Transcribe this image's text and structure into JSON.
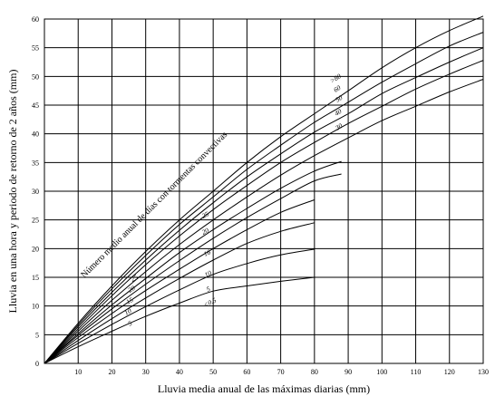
{
  "chart_data": {
    "type": "line",
    "xlabel": "Lluvia media anual de las máximas diarias (mm)",
    "ylabel": "Lluvia en una hora y periodo de retorno de 2 años (mm)",
    "annotation": "Número medio anual de días con tormentas convectivas",
    "xlim": [
      0,
      130
    ],
    "ylim": [
      0,
      60
    ],
    "x_ticks": [
      "10",
      "20",
      "30",
      "40",
      "50",
      "60",
      "70",
      "80",
      "90",
      "100",
      "110",
      "120",
      "130"
    ],
    "y_ticks": [
      "0",
      "5",
      "10",
      "15",
      "20",
      "25",
      "30",
      "35",
      "40",
      "45",
      "50",
      "55",
      "60"
    ],
    "grid": true,
    "series": [
      {
        "name": ">80",
        "points": [
          [
            0,
            0
          ],
          [
            10,
            7
          ],
          [
            20,
            13.5
          ],
          [
            30,
            19.5
          ],
          [
            40,
            25
          ],
          [
            50,
            30
          ],
          [
            60,
            35
          ],
          [
            70,
            39.5
          ],
          [
            80,
            43.5
          ],
          [
            90,
            47.5
          ],
          [
            100,
            51.5
          ],
          [
            110,
            55
          ],
          [
            120,
            58
          ],
          [
            130,
            60.5
          ]
        ]
      },
      {
        "name": "60",
        "points": [
          [
            0,
            0
          ],
          [
            10,
            6.7
          ],
          [
            20,
            13
          ],
          [
            30,
            18.8
          ],
          [
            40,
            24.2
          ],
          [
            50,
            29
          ],
          [
            60,
            33.8
          ],
          [
            70,
            38
          ],
          [
            80,
            42
          ],
          [
            90,
            45.5
          ],
          [
            100,
            49
          ],
          [
            110,
            52.2
          ],
          [
            120,
            55.3
          ],
          [
            130,
            57.7
          ]
        ]
      },
      {
        "name": "50",
        "points": [
          [
            0,
            0
          ],
          [
            10,
            6.4
          ],
          [
            20,
            12.4
          ],
          [
            30,
            18
          ],
          [
            40,
            23.2
          ],
          [
            50,
            28
          ],
          [
            60,
            32.5
          ],
          [
            70,
            36.5
          ],
          [
            80,
            40.3
          ],
          [
            90,
            43.5
          ],
          [
            100,
            47
          ],
          [
            110,
            49.8
          ],
          [
            120,
            52.5
          ],
          [
            130,
            55
          ]
        ]
      },
      {
        "name": "40",
        "points": [
          [
            0,
            0
          ],
          [
            10,
            6
          ],
          [
            20,
            11.8
          ],
          [
            30,
            17.2
          ],
          [
            40,
            22.2
          ],
          [
            50,
            26.8
          ],
          [
            60,
            31
          ],
          [
            70,
            35
          ],
          [
            80,
            38.5
          ],
          [
            90,
            41.8
          ],
          [
            100,
            44.8
          ],
          [
            110,
            47.8
          ],
          [
            120,
            50.4
          ],
          [
            130,
            52.8
          ]
        ]
      },
      {
        "name": "30",
        "points": [
          [
            0,
            0
          ],
          [
            10,
            5.6
          ],
          [
            20,
            11
          ],
          [
            30,
            16
          ],
          [
            40,
            20.7
          ],
          [
            50,
            25
          ],
          [
            60,
            29
          ],
          [
            70,
            32.8
          ],
          [
            80,
            36.2
          ],
          [
            90,
            39.3
          ],
          [
            100,
            42.3
          ],
          [
            110,
            44.8
          ],
          [
            120,
            47.3
          ],
          [
            130,
            49.5
          ]
        ]
      },
      {
        "name": "25",
        "points": [
          [
            0,
            0
          ],
          [
            10,
            5.2
          ],
          [
            20,
            10.2
          ],
          [
            30,
            14.8
          ],
          [
            40,
            19.3
          ],
          [
            50,
            23.3
          ],
          [
            60,
            27
          ],
          [
            70,
            30.5
          ],
          [
            80,
            33.5
          ],
          [
            88,
            35.2
          ]
        ]
      },
      {
        "name": "20",
        "points": [
          [
            0,
            0
          ],
          [
            10,
            4.9
          ],
          [
            20,
            9.5
          ],
          [
            30,
            13.8
          ],
          [
            40,
            17.9
          ],
          [
            50,
            21.8
          ],
          [
            60,
            25.4
          ],
          [
            70,
            28.7
          ],
          [
            80,
            31.8
          ],
          [
            88,
            33
          ]
        ]
      },
      {
        "name": "16",
        "points": [
          [
            0,
            0
          ],
          [
            10,
            4.5
          ],
          [
            20,
            8.7
          ],
          [
            30,
            12.7
          ],
          [
            40,
            16.4
          ],
          [
            50,
            20
          ],
          [
            60,
            23.3
          ],
          [
            70,
            26.3
          ],
          [
            80,
            28.5
          ]
        ]
      },
      {
        "name": "10",
        "points": [
          [
            0,
            0
          ],
          [
            10,
            4
          ],
          [
            20,
            7.8
          ],
          [
            30,
            11.4
          ],
          [
            40,
            14.8
          ],
          [
            50,
            18
          ],
          [
            60,
            20.9
          ],
          [
            70,
            23
          ],
          [
            80,
            24.5
          ]
        ]
      },
      {
        "name": "5",
        "points": [
          [
            0,
            0
          ],
          [
            10,
            3.5
          ],
          [
            20,
            6.8
          ],
          [
            30,
            9.9
          ],
          [
            40,
            12.8
          ],
          [
            50,
            15.5
          ],
          [
            60,
            17.4
          ],
          [
            70,
            18.9
          ],
          [
            80,
            19.9
          ]
        ]
      },
      {
        "name": "<0.5",
        "points": [
          [
            0,
            0
          ],
          [
            10,
            2.9
          ],
          [
            20,
            5.6
          ],
          [
            30,
            8.2
          ],
          [
            40,
            10.5
          ],
          [
            50,
            12.6
          ],
          [
            60,
            13.5
          ],
          [
            70,
            14.3
          ],
          [
            80,
            15
          ]
        ]
      }
    ],
    "curve_labels_upper": [
      ">80",
      "60",
      "50",
      "40",
      "30"
    ],
    "curve_labels_lower": [
      "25",
      "20",
      "16",
      "10",
      "5",
      "<0.5"
    ],
    "curve_labels_left": [
      "25",
      "20",
      "15",
      "10",
      "5"
    ]
  }
}
